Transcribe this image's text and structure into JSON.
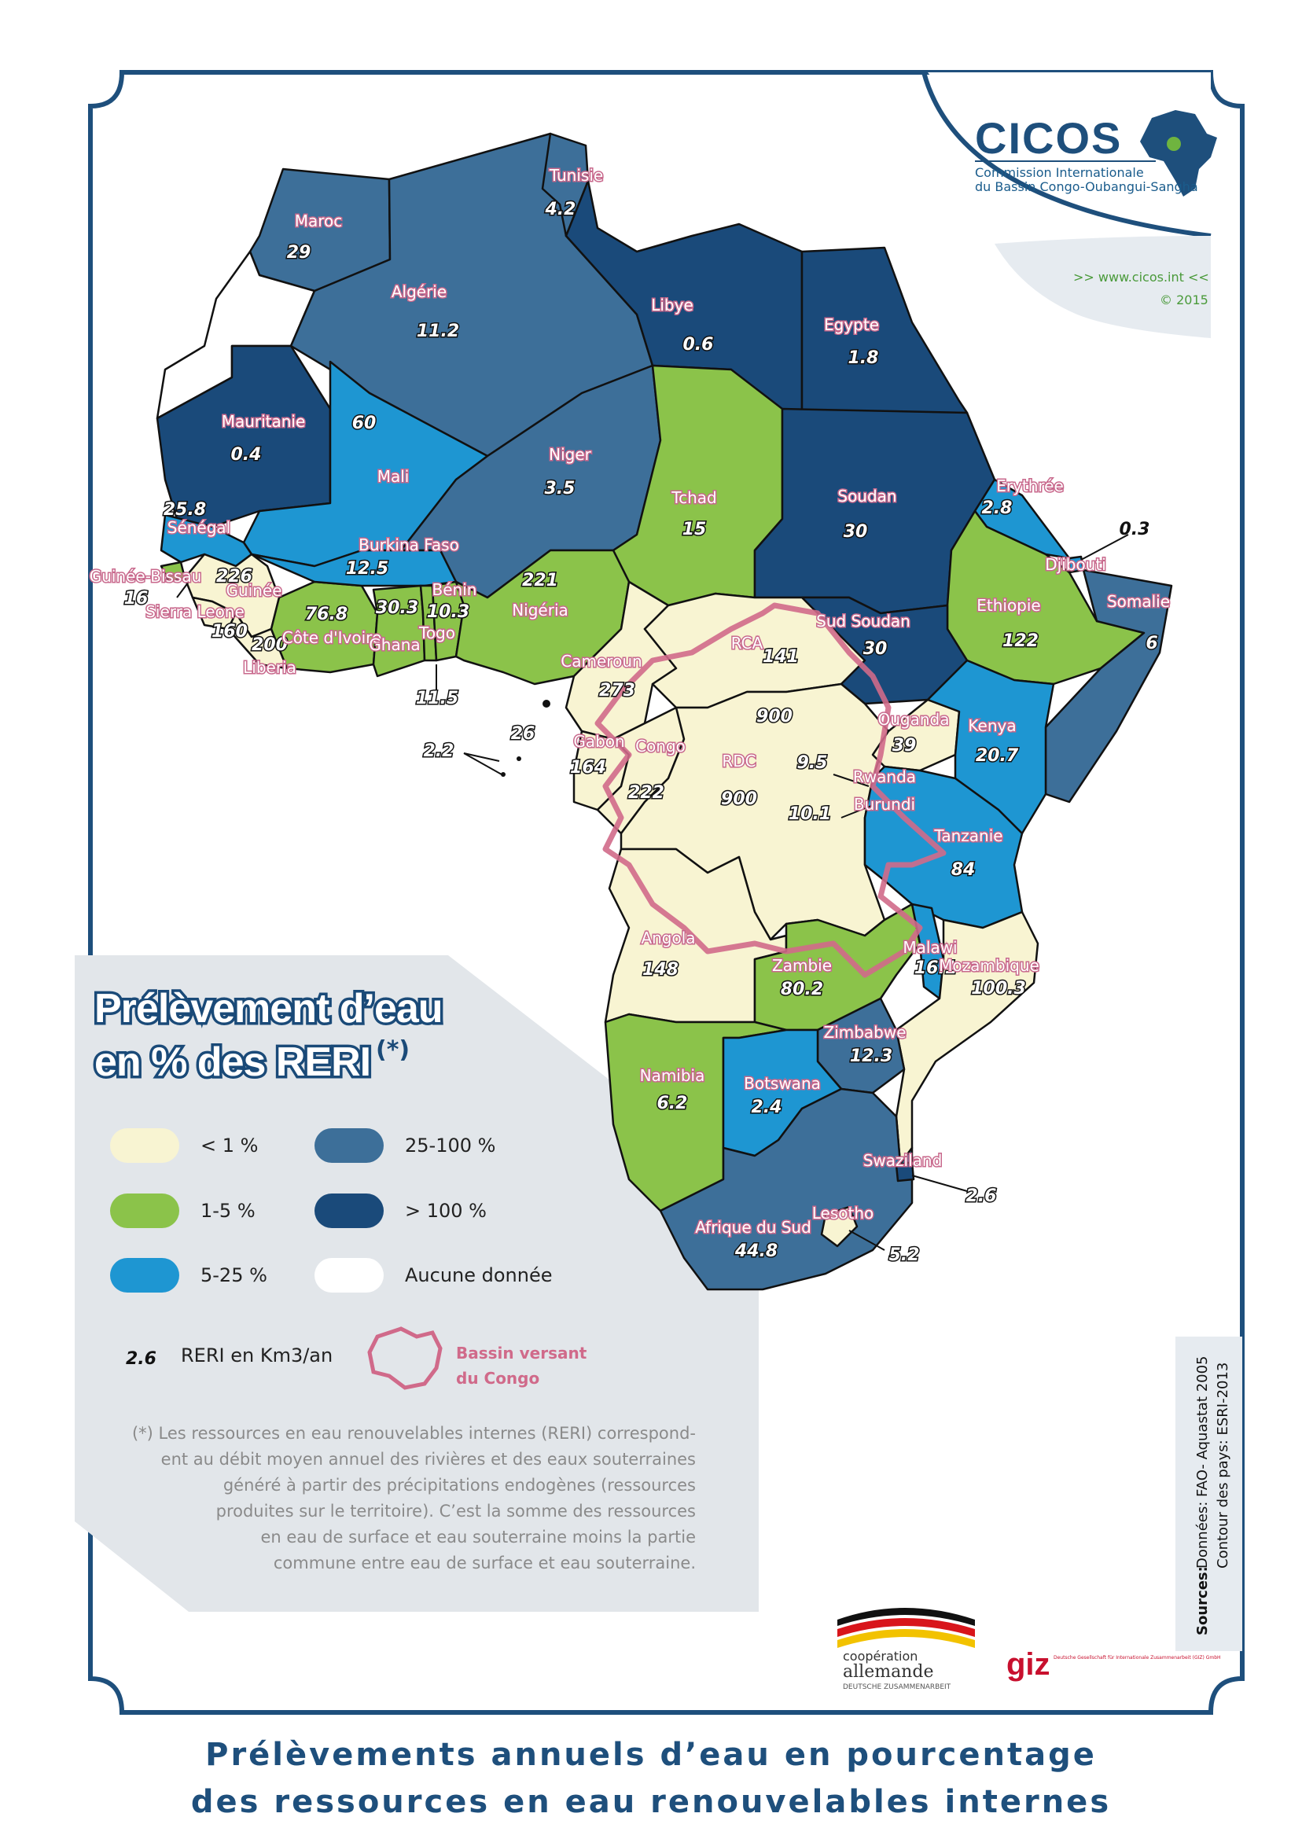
{
  "title_line1": "Prélèvements annuels d’eau en pourcentage",
  "title_line2": "des ressources en eau renouvelables internes",
  "logo": {
    "name": "CICOS",
    "subtitle1": "Commission Internationale",
    "subtitle2": "du Bassin Congo-Oubangui-Sangha",
    "url": ">> www.cicos.int <<",
    "copyright": "© 2015"
  },
  "legend": {
    "title1": "Prélèvement d’eau",
    "title2": "en % des RERI",
    "star": "(*)",
    "classes": [
      {
        "label": "< 1 %",
        "color": "#f8f4d2"
      },
      {
        "label": "25-100 %",
        "color": "#3d6f99"
      },
      {
        "label": "1-5 %",
        "color": "#8bc34a"
      },
      {
        "label": "> 100 %",
        "color": "#1a4a7a"
      },
      {
        "label": "5-25 %",
        "color": "#1e96d2"
      },
      {
        "label": "Aucune donnée",
        "color": "#ffffff"
      }
    ],
    "reri_value": "2.6",
    "reri_label": "RERI en Km3/an",
    "basin_label1": "Bassin versant",
    "basin_label2": "du Congo",
    "basin_color": "#d06a8a"
  },
  "note_lines": [
    "(*) Les ressources en eau renouvelables internes (RERI) correspond-",
    "ent au débit moyen annuel des rivières et des eaux souterraines",
    "généré à partir des précipitations endogènes (ressources",
    "produites sur le territoire). C’est la somme des ressources",
    "en eau de surface et eau souterraine moins la partie",
    "commune entre eau de surface et eau souterraine."
  ],
  "sources": {
    "label": "Sources:",
    "line1": "Données: FAO- Aquastat 2005",
    "line2": "Contour des pays: ESRI-2013"
  },
  "sponsors": {
    "coop1": "coopération",
    "coop2": "allemande",
    "coop3": "DEUTSCHE ZUSAMMENARBEIT",
    "giz": "giz",
    "giz_sub": "Deutsche Gesellschaft für Internationale Zusammenarbeit (GIZ) GmbH"
  },
  "countries": [
    {
      "name": "Maroc",
      "value": "29"
    },
    {
      "name": "Algérie",
      "value": "11.2"
    },
    {
      "name": "Tunisie",
      "value": "4.2"
    },
    {
      "name": "Libye",
      "value": "0.6"
    },
    {
      "name": "Egypte",
      "value": "1.8"
    },
    {
      "name": "Mauritanie",
      "value": "0.4"
    },
    {
      "name": "Mali",
      "value": "60"
    },
    {
      "name": "Niger",
      "value": "3.5"
    },
    {
      "name": "Tchad",
      "value": "15"
    },
    {
      "name": "Soudan",
      "value": "30"
    },
    {
      "name": "Erythrée",
      "value": "2.8"
    },
    {
      "name": "Djibouti",
      "value": "0.3"
    },
    {
      "name": "Sénégal",
      "value": "25.8"
    },
    {
      "name": "Guinée-Bissau",
      "value": "16"
    },
    {
      "name": "Guinée",
      "value": "226"
    },
    {
      "name": "Sierra Leone",
      "value": "160"
    },
    {
      "name": "Liberia",
      "value": "200"
    },
    {
      "name": "Côte d'Ivoire",
      "value": "76.8"
    },
    {
      "name": "Burkina Faso",
      "value": "12.5"
    },
    {
      "name": "Ghana",
      "value": "30.3"
    },
    {
      "name": "Togo",
      "value": "11.5"
    },
    {
      "name": "Bénin",
      "value": "10.3"
    },
    {
      "name": "Nigéria",
      "value": "221"
    },
    {
      "name": "Ethiopie",
      "value": "122"
    },
    {
      "name": "Somalie",
      "value": "6"
    },
    {
      "name": "Sud Soudan",
      "value": "30"
    },
    {
      "name": "RCA",
      "value": "141"
    },
    {
      "name": "Cameroun",
      "value": "273"
    },
    {
      "name": "Gabon",
      "value": "164"
    },
    {
      "name": "Congo",
      "value": "222"
    },
    {
      "name": "RDC",
      "value": "900"
    },
    {
      "name": "Ouganda",
      "value": "39"
    },
    {
      "name": "Kenya",
      "value": "20.7"
    },
    {
      "name": "Rwanda",
      "value": "9.5"
    },
    {
      "name": "Burundi",
      "value": "10.1"
    },
    {
      "name": "Tanzanie",
      "value": "84"
    },
    {
      "name": "Angola",
      "value": "148"
    },
    {
      "name": "Zambie",
      "value": "80.2"
    },
    {
      "name": "Malawi",
      "value": "16.1"
    },
    {
      "name": "Mozambique",
      "value": "100.3"
    },
    {
      "name": "Zimbabwe",
      "value": "12.3"
    },
    {
      "name": "Namibia",
      "value": "6.2"
    },
    {
      "name": "Botswana",
      "value": "2.4"
    },
    {
      "name": "Swaziland",
      "value": "2.6"
    },
    {
      "name": "Lesotho",
      "value": "5.2"
    },
    {
      "name": "Afrique du Sud",
      "value": "44.8"
    }
  ],
  "extra_values": {
    "equatorial_guinea": "26",
    "sao_tome": "2.2",
    "rdc_extra": "900"
  }
}
